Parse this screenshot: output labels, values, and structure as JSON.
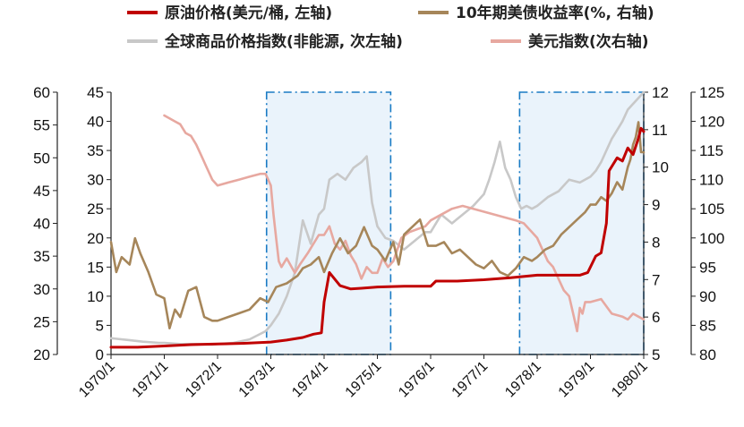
{
  "chart_data": {
    "type": "line",
    "title": "",
    "legend": {
      "placement": "top",
      "entries": [
        {
          "key": "crude",
          "label": "原油价格(美元/桶, 左轴)",
          "color": "#c00000"
        },
        {
          "key": "yield10",
          "label": "10年期美债收益率(%, 右轴)",
          "color": "#a6865a"
        },
        {
          "key": "commodity",
          "label": "全球商品价格指数(非能源, 次左轴)",
          "color": "#c8c8c8"
        },
        {
          "key": "usd",
          "label": "美元指数(次右轴)",
          "color": "#e7a8a0"
        }
      ]
    },
    "x_axis": {
      "range": [
        "1970/1",
        "1980/1"
      ],
      "tick_labels": [
        "1970/1",
        "1971/1",
        "1972/1",
        "1973/1",
        "1974/1",
        "1975/1",
        "1976/1",
        "1977/1",
        "1978/1",
        "1979/1",
        "1980/1"
      ]
    },
    "axes": {
      "left": {
        "range": [
          20,
          60
        ],
        "ticks": [
          "20",
          "25",
          "30",
          "35",
          "40",
          "45",
          "50",
          "55",
          "60"
        ]
      },
      "left_secondary": {
        "range": [
          0,
          45
        ],
        "ticks": [
          "0",
          "5",
          "10",
          "15",
          "20",
          "25",
          "30",
          "35",
          "40",
          "45"
        ]
      },
      "right": {
        "range": [
          5,
          12
        ],
        "ticks": [
          "5",
          "6",
          "7",
          "8",
          "9",
          "10",
          "11",
          "12"
        ]
      },
      "right_secondary": {
        "range": [
          80,
          125
        ],
        "ticks": [
          "80",
          "85",
          "90",
          "95",
          "100",
          "105",
          "110",
          "115",
          "120",
          "125"
        ]
      }
    },
    "grid": false,
    "shaded_periods": [
      {
        "from": 1972.92,
        "to": 1975.25
      },
      {
        "from": 1977.67,
        "to": 1980.0
      }
    ],
    "series": [
      {
        "key": "crude",
        "name": "原油价格(美元/桶, 左轴)",
        "axis": "left",
        "color": "#c00000",
        "x": [
          1970.0,
          1970.5,
          1971.0,
          1971.5,
          1972.0,
          1972.5,
          1973.0,
          1973.3,
          1973.6,
          1973.8,
          1973.95,
          1974.0,
          1974.1,
          1974.3,
          1974.5,
          1974.7,
          1975.0,
          1975.5,
          1976.0,
          1976.1,
          1976.5,
          1977.0,
          1977.5,
          1978.0,
          1978.5,
          1978.8,
          1978.95,
          1979.1,
          1979.2,
          1979.3,
          1979.35,
          1979.5,
          1979.6,
          1979.7,
          1979.8,
          1979.9,
          1979.95,
          1980.0
        ],
        "y": [
          21.1,
          21.1,
          21.3,
          21.5,
          21.6,
          21.7,
          21.9,
          22.2,
          22.6,
          23.1,
          23.3,
          28.0,
          32.5,
          30.5,
          30.0,
          30.1,
          30.3,
          30.4,
          30.4,
          31.2,
          31.2,
          31.4,
          31.7,
          32.1,
          32.1,
          32.1,
          32.5,
          35.0,
          35.5,
          40.0,
          48.0,
          50.0,
          49.5,
          51.5,
          50.5,
          53.0,
          54.5,
          54.0
        ]
      },
      {
        "key": "yield10",
        "name": "10年期美债收益率(%, 右轴)",
        "axis": "right",
        "color": "#a6865a",
        "x": [
          1970.0,
          1970.1,
          1970.2,
          1970.35,
          1970.45,
          1970.55,
          1970.7,
          1970.85,
          1971.0,
          1971.1,
          1971.2,
          1971.3,
          1971.45,
          1971.6,
          1971.75,
          1971.9,
          1972.0,
          1972.2,
          1972.4,
          1972.6,
          1972.8,
          1972.95,
          1973.1,
          1973.3,
          1973.5,
          1973.6,
          1973.75,
          1973.9,
          1974.0,
          1974.15,
          1974.3,
          1974.45,
          1974.6,
          1974.75,
          1974.9,
          1975.0,
          1975.15,
          1975.3,
          1975.4,
          1975.5,
          1975.65,
          1975.8,
          1975.95,
          1976.1,
          1976.25,
          1976.4,
          1976.55,
          1976.7,
          1976.85,
          1977.0,
          1977.15,
          1977.3,
          1977.45,
          1977.6,
          1977.75,
          1977.9,
          1978.0,
          1978.15,
          1978.3,
          1978.45,
          1978.6,
          1978.75,
          1978.9,
          1979.0,
          1979.1,
          1979.2,
          1979.3,
          1979.4,
          1979.5,
          1979.6,
          1979.7,
          1979.75,
          1979.8,
          1979.85,
          1979.9,
          1979.95,
          1980.0
        ],
        "y": [
          8.0,
          7.2,
          7.6,
          7.4,
          8.1,
          7.7,
          7.2,
          6.6,
          6.5,
          5.7,
          6.2,
          6.0,
          6.7,
          6.8,
          6.0,
          5.9,
          5.9,
          6.0,
          6.1,
          6.2,
          6.5,
          6.4,
          6.8,
          6.9,
          7.1,
          7.3,
          7.4,
          7.6,
          7.2,
          7.7,
          8.1,
          7.7,
          7.9,
          8.4,
          7.9,
          7.8,
          7.5,
          8.0,
          7.4,
          8.2,
          8.4,
          8.6,
          7.9,
          7.9,
          8.0,
          7.7,
          7.8,
          7.6,
          7.4,
          7.3,
          7.5,
          7.2,
          7.1,
          7.3,
          7.6,
          7.5,
          7.6,
          7.8,
          7.9,
          8.2,
          8.4,
          8.6,
          8.8,
          9.0,
          9.0,
          9.2,
          9.1,
          9.3,
          9.6,
          9.4,
          10.0,
          10.2,
          10.6,
          10.8,
          11.2,
          10.4,
          10.4
        ]
      },
      {
        "key": "commodity",
        "name": "全球商品价格指数(非能源, 次左轴)",
        "axis": "left_secondary",
        "color": "#c8c8c8",
        "x": [
          1970.0,
          1970.3,
          1970.6,
          1970.9,
          1971.0,
          1971.3,
          1971.6,
          1971.9,
          1972.0,
          1972.3,
          1972.6,
          1972.9,
          1973.0,
          1973.15,
          1973.3,
          1973.45,
          1973.6,
          1973.75,
          1973.9,
          1974.0,
          1974.1,
          1974.25,
          1974.4,
          1974.55,
          1974.7,
          1974.8,
          1974.9,
          1975.0,
          1975.15,
          1975.3,
          1975.5,
          1975.7,
          1975.9,
          1976.0,
          1976.2,
          1976.4,
          1976.6,
          1976.8,
          1977.0,
          1977.1,
          1977.2,
          1977.3,
          1977.4,
          1977.5,
          1977.6,
          1977.7,
          1977.8,
          1977.9,
          1978.0,
          1978.2,
          1978.4,
          1978.6,
          1978.8,
          1979.0,
          1979.1,
          1979.2,
          1979.3,
          1979.4,
          1979.5,
          1979.6,
          1979.7,
          1979.8,
          1979.9,
          1980.0
        ],
        "y": [
          2.8,
          2.5,
          2.2,
          2.0,
          2.0,
          1.8,
          1.8,
          1.7,
          1.8,
          2.0,
          2.6,
          4.0,
          5.0,
          7.0,
          10.0,
          14.0,
          23.0,
          19.0,
          24.0,
          25.0,
          30.0,
          31.0,
          30.0,
          32.0,
          33.0,
          34.0,
          26.0,
          22.0,
          20.0,
          19.5,
          18.0,
          19.5,
          21.0,
          21.0,
          24.0,
          22.5,
          24.0,
          25.5,
          27.5,
          30.0,
          33.0,
          36.5,
          32.0,
          30.0,
          27.0,
          25.0,
          25.5,
          25.0,
          25.5,
          27.0,
          28.0,
          30.0,
          29.5,
          30.5,
          31.5,
          33.0,
          35.0,
          37.0,
          38.5,
          40.0,
          42.0,
          43.0,
          44.0,
          45.0
        ]
      },
      {
        "key": "usd",
        "name": "美元指数(次右轴)",
        "axis": "right_secondary",
        "color": "#e7a8a0",
        "x": [
          1971.0,
          1971.1,
          1971.2,
          1971.3,
          1971.4,
          1971.5,
          1971.6,
          1971.7,
          1971.8,
          1971.9,
          1972.0,
          1972.2,
          1972.4,
          1972.6,
          1972.8,
          1972.9,
          1973.0,
          1973.05,
          1973.1,
          1973.15,
          1973.2,
          1973.3,
          1973.45,
          1973.55,
          1973.7,
          1973.8,
          1973.9,
          1974.0,
          1974.1,
          1974.2,
          1974.3,
          1974.4,
          1974.5,
          1974.6,
          1974.7,
          1974.8,
          1974.9,
          1975.0,
          1975.1,
          1975.2,
          1975.3,
          1975.45,
          1975.6,
          1975.75,
          1975.9,
          1976.0,
          1976.2,
          1976.4,
          1976.6,
          1976.8,
          1977.0,
          1977.2,
          1977.4,
          1977.6,
          1977.75,
          1977.9,
          1978.0,
          1978.1,
          1978.2,
          1978.3,
          1978.4,
          1978.5,
          1978.6,
          1978.7,
          1978.75,
          1978.8,
          1978.85,
          1978.9,
          1979.0,
          1979.2,
          1979.4,
          1979.6,
          1979.7,
          1979.8,
          1979.9,
          1980.0
        ],
        "y": [
          121.0,
          120.5,
          120.0,
          119.5,
          118.0,
          117.5,
          116.0,
          114.0,
          112.0,
          110.0,
          109.0,
          109.5,
          110.0,
          110.5,
          111.0,
          111.0,
          109.0,
          104.0,
          100.0,
          96.0,
          95.0,
          96.5,
          94.0,
          95.5,
          97.5,
          99.0,
          100.5,
          100.5,
          102.0,
          99.0,
          98.0,
          99.5,
          97.0,
          95.5,
          93.0,
          95.0,
          94.0,
          94.0,
          96.5,
          95.0,
          96.0,
          100.0,
          101.0,
          101.5,
          102.0,
          103.0,
          104.0,
          105.0,
          105.5,
          105.0,
          104.5,
          104.0,
          103.5,
          103.0,
          102.5,
          101.0,
          100.0,
          98.0,
          96.0,
          95.0,
          93.0,
          91.0,
          90.0,
          86.0,
          84.0,
          88.0,
          87.0,
          89.0,
          89.0,
          89.5,
          87.0,
          86.5,
          86.0,
          87.0,
          86.5,
          86.0
        ]
      }
    ]
  }
}
